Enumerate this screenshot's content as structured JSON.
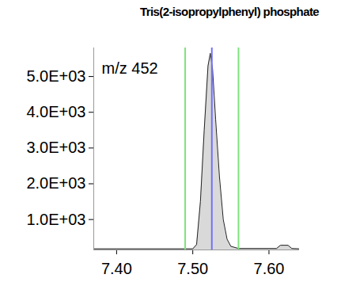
{
  "chart_data": {
    "type": "area",
    "title": "Tris(2-isopropylphenyl) phosphate",
    "annotation": "m/z 452",
    "x": [
      7.37,
      7.5,
      7.505,
      7.51,
      7.515,
      7.52,
      7.523,
      7.526,
      7.53,
      7.535,
      7.54,
      7.545,
      7.55,
      7.56,
      7.61,
      7.615,
      7.625,
      7.63,
      7.64
    ],
    "values": [
      180,
      180,
      300,
      1500,
      3500,
      5300,
      5650,
      5200,
      3800,
      2200,
      1000,
      450,
      250,
      190,
      190,
      280,
      280,
      190,
      180
    ],
    "integration_bounds": [
      7.49,
      7.56
    ],
    "retention_time": 7.525,
    "xlim": [
      7.37,
      7.64
    ],
    "xticks": [
      {
        "value": 7.4,
        "label": "7.40"
      },
      {
        "value": 7.5,
        "label": "7.50"
      },
      {
        "value": 7.6,
        "label": "7.60"
      }
    ],
    "ylim": [
      150,
      5800
    ],
    "yticks": [
      {
        "value": 1000,
        "label": "1.0E+03"
      },
      {
        "value": 2000,
        "label": "2.0E+03"
      },
      {
        "value": 3000,
        "label": "3.0E+03"
      },
      {
        "value": 4000,
        "label": "4.0E+03"
      },
      {
        "value": 5000,
        "label": "5.0E+03"
      }
    ],
    "grid": false
  }
}
